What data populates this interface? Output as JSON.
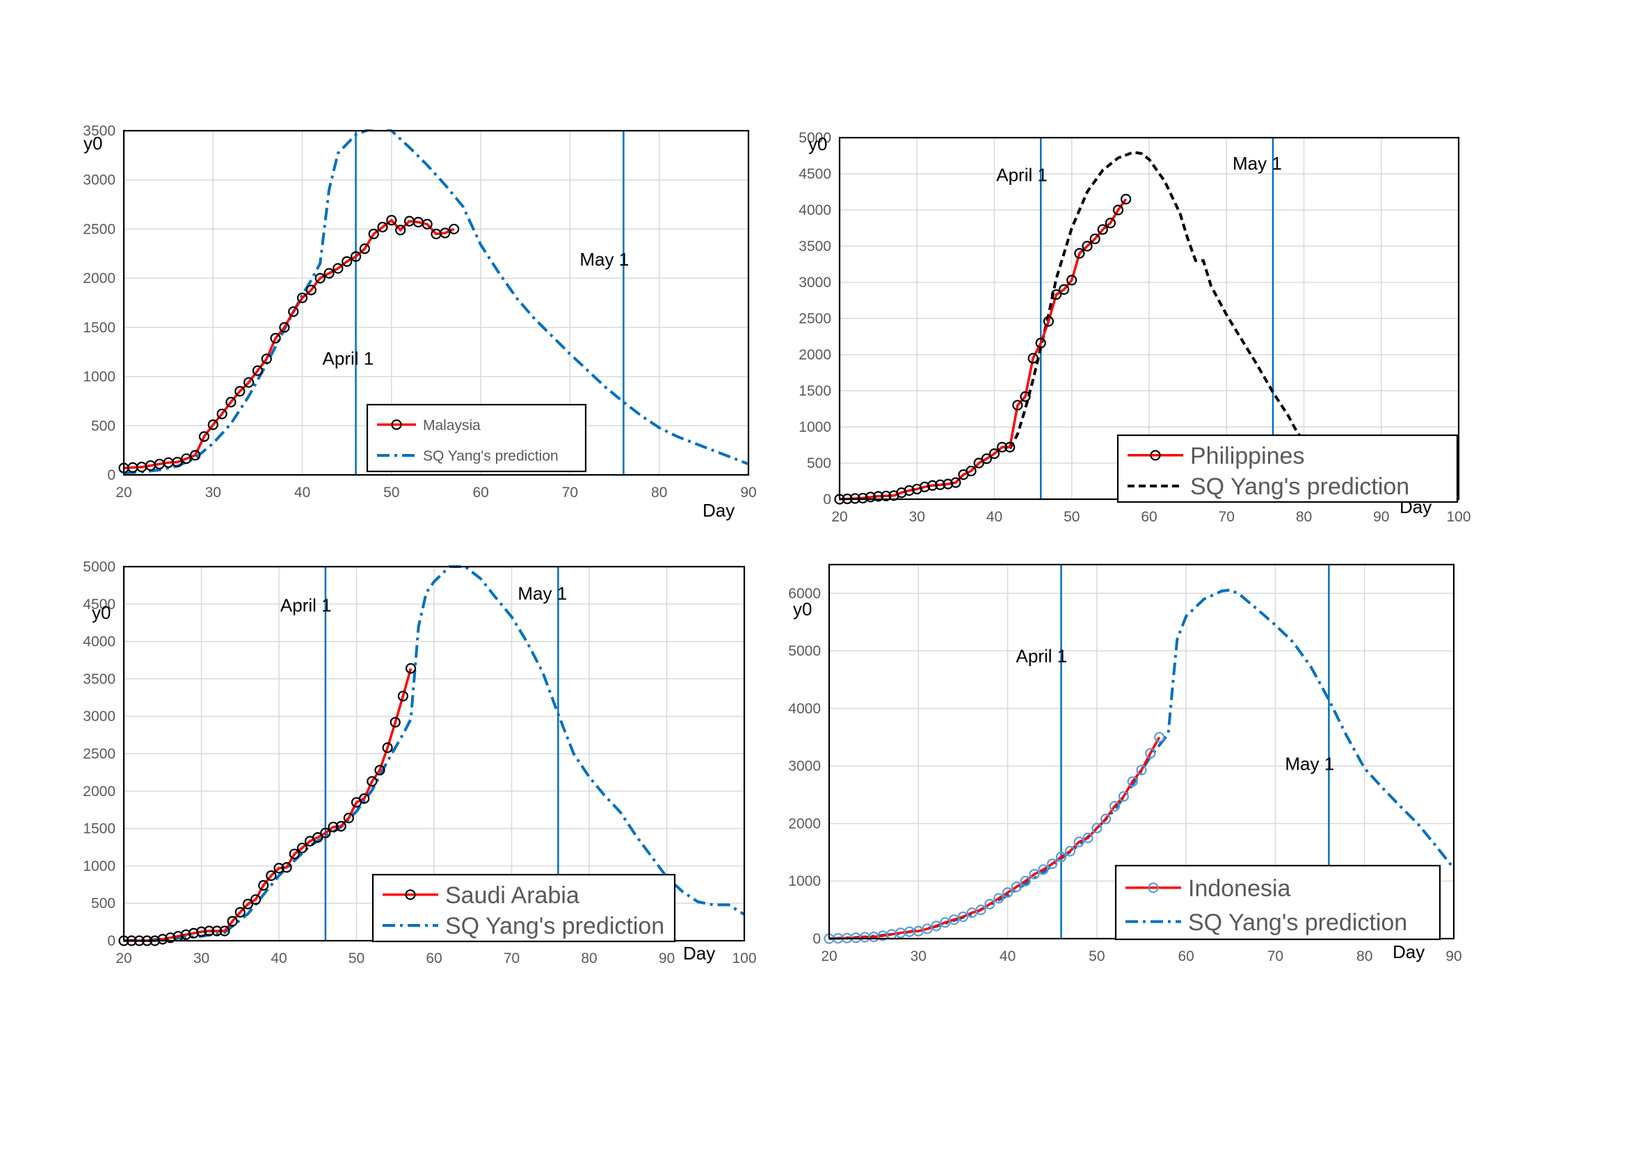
{
  "chart_data": [
    {
      "type": "line",
      "panel": "Malaysia",
      "xlabel": "Day",
      "ylabel": "y0",
      "xlim": [
        20,
        90
      ],
      "ylim": [
        0,
        3500
      ],
      "xticks": [
        20,
        30,
        40,
        50,
        60,
        70,
        80,
        90
      ],
      "yticks": [
        0,
        500,
        1000,
        1500,
        2000,
        2500,
        3000,
        3500
      ],
      "grid": true,
      "legend_position": "bottom-center",
      "annotations": [
        {
          "text": "April 1",
          "x": 46,
          "y": 1120,
          "vline": true
        },
        {
          "text": "May 1",
          "x": 76,
          "y": 2130,
          "vline": true
        }
      ],
      "series": [
        {
          "name": "Malaysia",
          "style": "observed",
          "color": "#ff0000",
          "marker_color": "#000000",
          "x": [
            20,
            21,
            22,
            23,
            24,
            25,
            26,
            27,
            28,
            29,
            30,
            31,
            32,
            33,
            34,
            35,
            36,
            37,
            38,
            39,
            40,
            41,
            42,
            43,
            44,
            45,
            46,
            47,
            48,
            49,
            50,
            51,
            52,
            53,
            54,
            55,
            56,
            57
          ],
          "y": [
            70,
            75,
            80,
            95,
            110,
            125,
            130,
            165,
            200,
            390,
            510,
            620,
            740,
            850,
            940,
            1060,
            1180,
            1390,
            1500,
            1660,
            1800,
            1880,
            2000,
            2050,
            2100,
            2170,
            2220,
            2300,
            2450,
            2520,
            2590,
            2490,
            2580,
            2570,
            2550,
            2450,
            2460,
            2500
          ]
        },
        {
          "name": "SQ Yang's prediction",
          "style": "dashdot",
          "color": "#0070c0",
          "x": [
            20,
            22,
            24,
            26,
            28,
            30,
            32,
            34,
            36,
            38,
            40,
            41,
            42,
            43,
            44,
            46,
            48,
            49,
            50,
            52,
            54,
            56,
            58,
            60,
            62,
            64,
            66,
            68,
            70,
            72,
            74,
            76,
            78,
            80,
            82,
            84,
            86,
            88,
            90
          ],
          "y": [
            20,
            30,
            50,
            90,
            170,
            320,
            520,
            800,
            1130,
            1480,
            1830,
            1980,
            2150,
            2900,
            3270,
            3460,
            3530,
            3550,
            3500,
            3330,
            3150,
            2950,
            2730,
            2340,
            2060,
            1800,
            1590,
            1410,
            1230,
            1060,
            890,
            740,
            600,
            480,
            390,
            320,
            250,
            180,
            110
          ]
        }
      ]
    },
    {
      "type": "line",
      "panel": "Philippines",
      "xlabel": "Day",
      "ylabel": "y0",
      "xlim": [
        20,
        100
      ],
      "ylim": [
        0,
        5000
      ],
      "xticks": [
        20,
        30,
        40,
        50,
        60,
        70,
        80,
        90,
        100
      ],
      "yticks": [
        0,
        500,
        1000,
        1500,
        2000,
        2500,
        3000,
        3500,
        4000,
        4500,
        5000
      ],
      "grid": true,
      "legend_position": "bottom-right",
      "annotations": [
        {
          "text": "April 1",
          "x": 46,
          "y": 4400,
          "vline": true
        },
        {
          "text": "May 1",
          "x": 76,
          "y": 4560,
          "vline": true
        }
      ],
      "series": [
        {
          "name": "Philippines",
          "style": "observed",
          "color": "#ff0000",
          "marker_color": "#000000",
          "x": [
            20,
            21,
            22,
            23,
            24,
            25,
            26,
            27,
            28,
            29,
            30,
            31,
            32,
            33,
            34,
            35,
            36,
            37,
            38,
            39,
            40,
            41,
            42,
            43,
            44,
            45,
            46,
            47,
            48,
            49,
            50,
            51,
            52,
            53,
            54,
            55,
            56,
            57
          ],
          "y": [
            0,
            5,
            10,
            15,
            30,
            40,
            45,
            50,
            90,
            120,
            140,
            170,
            190,
            200,
            210,
            230,
            340,
            390,
            500,
            560,
            630,
            720,
            720,
            1300,
            1420,
            1950,
            2160,
            2460,
            2830,
            2900,
            3030,
            3400,
            3500,
            3600,
            3730,
            3820,
            4000,
            4150
          ]
        },
        {
          "name": "SQ Yang's prediction",
          "style": "dashed",
          "color": "#000000",
          "x": [
            42,
            43,
            44,
            45,
            46,
            47,
            48,
            50,
            52,
            54,
            56,
            58,
            59,
            60,
            62,
            64,
            65,
            66,
            67,
            68,
            70,
            72,
            74,
            76,
            78,
            79,
            80,
            82,
            84,
            86,
            88,
            90,
            92,
            95,
            98,
            100
          ],
          "y": [
            700,
            900,
            1250,
            1650,
            2100,
            2550,
            3050,
            3750,
            4250,
            4550,
            4720,
            4800,
            4780,
            4700,
            4400,
            3950,
            3600,
            3300,
            3300,
            2950,
            2550,
            2200,
            1850,
            1480,
            1150,
            950,
            800,
            550,
            400,
            280,
            190,
            130,
            80,
            40,
            15,
            0
          ]
        }
      ]
    },
    {
      "type": "line",
      "panel": "Saudi Arabia",
      "xlabel": "Day",
      "ylabel": "y0",
      "xlim": [
        20,
        100
      ],
      "ylim": [
        0,
        5000
      ],
      "xticks": [
        20,
        30,
        40,
        50,
        60,
        70,
        80,
        90,
        100
      ],
      "yticks": [
        0,
        500,
        1000,
        1500,
        2000,
        2500,
        3000,
        3500,
        4000,
        4500,
        5000
      ],
      "grid": true,
      "legend_position": "bottom-center",
      "annotations": [
        {
          "text": "April 1",
          "x": 46,
          "y": 4400,
          "vline": true
        },
        {
          "text": "May 1",
          "x": 76,
          "y": 4560,
          "vline": true
        }
      ],
      "series": [
        {
          "name": "Saudi Arabia",
          "style": "observed",
          "color": "#ff0000",
          "marker_color": "#000000",
          "x": [
            20,
            21,
            22,
            23,
            24,
            25,
            26,
            27,
            28,
            29,
            30,
            31,
            32,
            33,
            34,
            35,
            36,
            37,
            38,
            39,
            40,
            41,
            42,
            43,
            44,
            45,
            46,
            47,
            48,
            49,
            50,
            51,
            52,
            53,
            54,
            55,
            56,
            57
          ],
          "y": [
            0,
            0,
            0,
            0,
            0,
            20,
            40,
            60,
            80,
            100,
            120,
            130,
            130,
            130,
            260,
            380,
            490,
            550,
            740,
            870,
            970,
            980,
            1160,
            1240,
            1330,
            1380,
            1440,
            1520,
            1530,
            1640,
            1850,
            1900,
            2130,
            2280,
            2580,
            2920,
            3270,
            3640
          ]
        },
        {
          "name": "SQ Yang's prediction",
          "style": "dashdot",
          "color": "#0070c0",
          "x": [
            20,
            25,
            30,
            33,
            36,
            40,
            44,
            48,
            50,
            52,
            54,
            56,
            57,
            58,
            59,
            60,
            62,
            64,
            66,
            68,
            70,
            72,
            74,
            76,
            78,
            80,
            82,
            84,
            86,
            88,
            90,
            92,
            94,
            96,
            98,
            100
          ],
          "y": [
            0,
            20,
            60,
            110,
            360,
            870,
            1270,
            1520,
            1730,
            2010,
            2400,
            2760,
            2960,
            4200,
            4650,
            4800,
            5000,
            5000,
            4840,
            4580,
            4330,
            3990,
            3590,
            3030,
            2500,
            2190,
            1940,
            1720,
            1410,
            1130,
            850,
            660,
            520,
            480,
            480,
            350
          ]
        }
      ]
    },
    {
      "type": "line",
      "panel": "Indonesia",
      "xlabel": "Day",
      "ylabel": "y0",
      "xlim": [
        20,
        90
      ],
      "ylim": [
        0,
        6500
      ],
      "xticks": [
        20,
        30,
        40,
        50,
        60,
        70,
        80,
        90
      ],
      "yticks": [
        0,
        1000,
        2000,
        3000,
        4000,
        5000,
        6000
      ],
      "grid": true,
      "legend_position": "bottom-right",
      "annotations": [
        {
          "text": "April 1",
          "x": 46,
          "y": 4800,
          "vline": true
        },
        {
          "text": "May 1",
          "x": 76,
          "y": 2930,
          "vline": true
        }
      ],
      "series": [
        {
          "name": "Indonesia",
          "style": "observed",
          "color": "#ff0000",
          "marker_color": "#5b9bd5",
          "x": [
            20,
            21,
            22,
            23,
            24,
            25,
            26,
            27,
            28,
            29,
            30,
            31,
            32,
            33,
            34,
            35,
            36,
            37,
            38,
            39,
            40,
            41,
            42,
            43,
            44,
            45,
            46,
            47,
            48,
            49,
            50,
            51,
            52,
            53,
            54,
            55,
            56,
            57
          ],
          "y": [
            0,
            5,
            10,
            15,
            25,
            30,
            50,
            75,
            100,
            120,
            130,
            170,
            220,
            280,
            330,
            380,
            450,
            500,
            600,
            700,
            800,
            900,
            1000,
            1120,
            1200,
            1300,
            1420,
            1520,
            1680,
            1750,
            1920,
            2080,
            2300,
            2470,
            2730,
            2930,
            3220,
            3500
          ]
        },
        {
          "name": "SQ Yang's prediction",
          "style": "dashdot",
          "color": "#0070c0",
          "x": [
            20,
            24,
            28,
            32,
            36,
            40,
            44,
            48,
            50,
            52,
            54,
            56,
            58,
            58.5,
            59,
            60,
            62,
            64,
            65,
            66,
            68,
            70,
            72,
            74,
            76,
            78,
            80,
            82,
            84,
            86,
            88,
            90
          ],
          "y": [
            0,
            30,
            90,
            210,
            420,
            750,
            1150,
            1630,
            1910,
            2240,
            2670,
            3160,
            3560,
            4400,
            5200,
            5600,
            5900,
            6040,
            6060,
            5980,
            5720,
            5450,
            5150,
            4720,
            4150,
            3520,
            2960,
            2620,
            2300,
            1990,
            1610,
            1220
          ]
        }
      ]
    }
  ],
  "legends": [
    {
      "observed": "Malaysia",
      "prediction": "SQ Yang's prediction"
    },
    {
      "observed": "Philippines",
      "prediction": "SQ Yang's prediction"
    },
    {
      "observed": "Saudi Arabia",
      "prediction": "SQ Yang's prediction"
    },
    {
      "observed": "Indonesia",
      "prediction": "SQ Yang's prediction"
    }
  ]
}
